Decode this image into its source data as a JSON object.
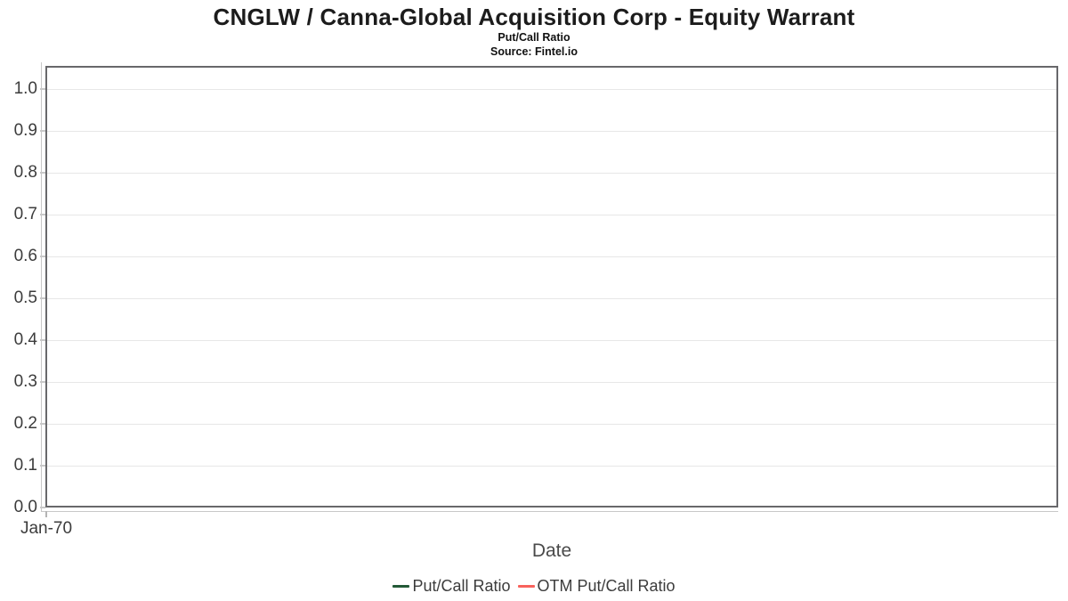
{
  "header": {
    "title": "CNGLW / Canna-Global Acquisition Corp - Equity Warrant",
    "subtitle": "Put/Call Ratio",
    "source": "Source: Fintel.io"
  },
  "axes": {
    "y_tick_labels": [
      "1.0",
      "0.9",
      "0.8",
      "0.7",
      "0.6",
      "0.5",
      "0.4",
      "0.3",
      "0.2",
      "0.1",
      "0.0"
    ],
    "x_ticks": [
      "Jan-70"
    ],
    "x_label": "Date"
  },
  "legend": {
    "items": [
      {
        "label": "Put/Call Ratio",
        "color": "#235937"
      },
      {
        "label": "OTM Put/Call Ratio",
        "color": "#f8625c"
      }
    ]
  },
  "colors": {
    "plot_border": "#68686b",
    "gridline": "#e7e7e7",
    "axis_line": "#c8c8c8",
    "series_green": "#235937",
    "series_red": "#f8625c"
  },
  "chart_data": {
    "type": "line",
    "title": "CNGLW / Canna-Global Acquisition Corp - Equity Warrant",
    "subtitle": "Put/Call Ratio",
    "source": "Source: Fintel.io",
    "xlabel": "Date",
    "ylabel": "",
    "x_tick_labels": [
      "Jan-70"
    ],
    "y_tick_labels": [
      "1.0",
      "0.9",
      "0.8",
      "0.7",
      "0.6",
      "0.5",
      "0.4",
      "0.3",
      "0.2",
      "0.1",
      "0.0"
    ],
    "ylim": [
      0.0,
      1.05
    ],
    "grid": true,
    "legend_position": "bottom-center",
    "series": [
      {
        "name": "Put/Call Ratio",
        "color": "#235937",
        "x": [],
        "values": []
      },
      {
        "name": "OTM Put/Call Ratio",
        "color": "#f8625c",
        "x": [],
        "values": []
      }
    ]
  }
}
